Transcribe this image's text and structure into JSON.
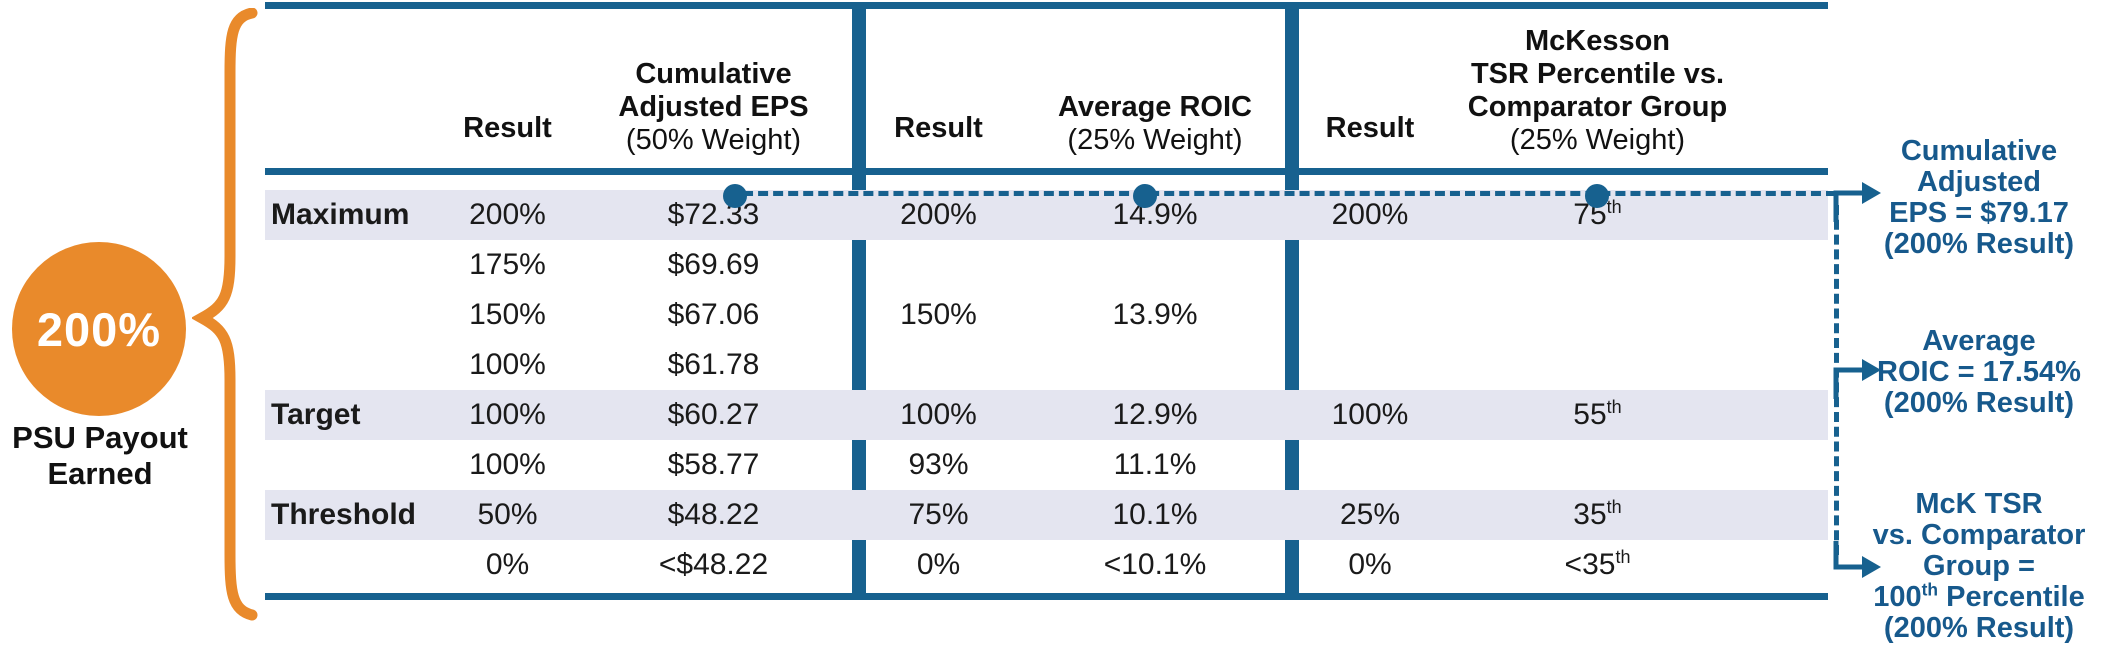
{
  "badge": {
    "value": "200%",
    "caption": "PSU Payout\nEarned"
  },
  "table": {
    "sections": [
      {
        "result_label": "Result",
        "title": "Cumulative\nAdjusted EPS",
        "weight": "(50% Weight)"
      },
      {
        "result_label": "Result",
        "title": "Average ROIC",
        "weight": "(25% Weight)"
      },
      {
        "result_label": "Result",
        "title": "McKesson\nTSR Percentile vs.\nComparator Group",
        "weight": "(25% Weight)"
      }
    ],
    "rows": [
      {
        "label": "Maximum",
        "shaded": true,
        "eps": {
          "result": "200%",
          "value": "$72.33"
        },
        "roic": {
          "result": "200%",
          "value": "14.9%"
        },
        "tsr": {
          "result": "200%",
          "value": {
            "pre": "75",
            "sup": "th"
          }
        }
      },
      {
        "label": "",
        "shaded": false,
        "eps": {
          "result": "175%",
          "value": "$69.69"
        }
      },
      {
        "label": "",
        "shaded": false,
        "eps": {
          "result": "150%",
          "value": "$67.06"
        },
        "roic": {
          "result": "150%",
          "value": "13.9%"
        }
      },
      {
        "label": "",
        "shaded": false,
        "eps": {
          "result": "100%",
          "value": "$61.78"
        }
      },
      {
        "label": "Target",
        "shaded": true,
        "eps": {
          "result": "100%",
          "value": "$60.27"
        },
        "roic": {
          "result": "100%",
          "value": "12.9%"
        },
        "tsr": {
          "result": "100%",
          "value": {
            "pre": "55",
            "sup": "th"
          }
        }
      },
      {
        "label": "",
        "shaded": false,
        "eps": {
          "result": "100%",
          "value": "$58.77"
        },
        "roic": {
          "result": "93%",
          "value": "11.1%"
        }
      },
      {
        "label": "Threshold",
        "shaded": true,
        "eps": {
          "result": "50%",
          "value": "$48.22"
        },
        "roic": {
          "result": "75%",
          "value": "10.1%"
        },
        "tsr": {
          "result": "25%",
          "value": {
            "pre": "35",
            "sup": "th"
          }
        }
      },
      {
        "label": "",
        "shaded": false,
        "eps": {
          "result": "0%",
          "value": "<$48.22"
        },
        "roic": {
          "result": "0%",
          "value": "<10.1%"
        },
        "tsr": {
          "result": "0%",
          "value": {
            "pre": "<35",
            "sup": "th"
          }
        }
      }
    ]
  },
  "callouts": [
    {
      "lines": [
        "Cumulative",
        "Adjusted",
        "EPS = $79.17",
        "(200% Result)"
      ]
    },
    {
      "lines": [
        "Average",
        "ROIC = 17.54%",
        "(200% Result)"
      ]
    },
    {
      "lines": [
        "McK TSR",
        "vs. Comparator",
        "Group =",
        {
          "pre": "100",
          "sup": "th",
          "post": " Percentile"
        },
        "(200% Result)"
      ]
    }
  ],
  "colors": {
    "accent_blue": "#17618F",
    "orange": "#E98A2B",
    "row_shade": "#E4E5F0",
    "callout_text": "#17598C"
  }
}
